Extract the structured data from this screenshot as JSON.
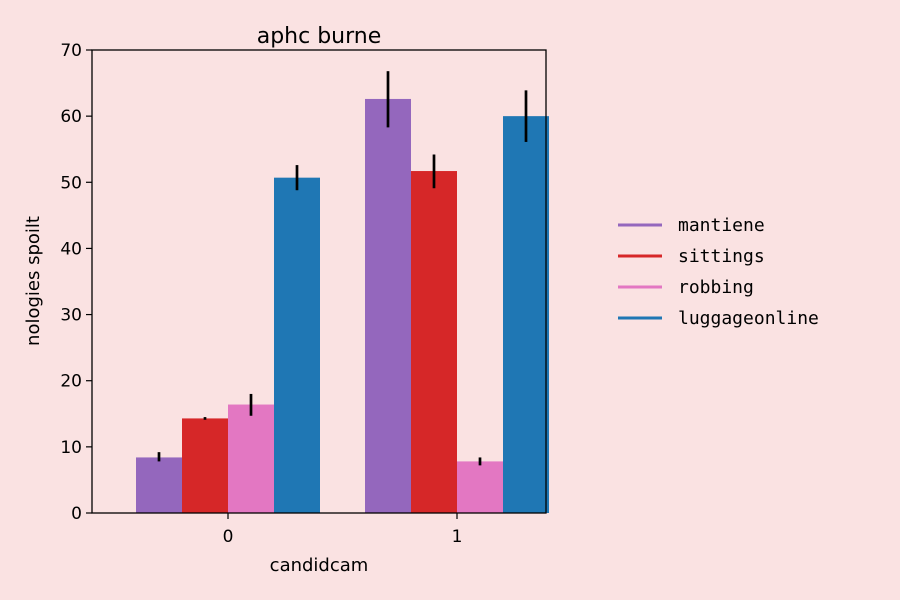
{
  "chart_data": {
    "type": "bar",
    "title": "aphc burne",
    "xlabel": "candidcam",
    "ylabel": "nologies spoilt",
    "categories": [
      "0",
      "1"
    ],
    "ylim": [
      0,
      70
    ],
    "yticks": [
      "0",
      "10",
      "20",
      "30",
      "40",
      "50",
      "60",
      "70"
    ],
    "series": [
      {
        "name": "mantiene",
        "color": "#9467bd",
        "values": [
          8.4,
          62.6
        ],
        "err_low": [
          7.8,
          58.3
        ],
        "err_high": [
          9.2,
          66.8
        ]
      },
      {
        "name": "sittings",
        "color": "#d62728",
        "values": [
          14.3,
          51.7
        ],
        "err_low": [
          14.1,
          49.1
        ],
        "err_high": [
          14.5,
          54.2
        ]
      },
      {
        "name": "robbing",
        "color": "#e377c2",
        "values": [
          16.4,
          7.8
        ],
        "err_low": [
          14.7,
          7.2
        ],
        "err_high": [
          18.0,
          8.4
        ]
      },
      {
        "name": "luggageonline",
        "color": "#1f77b4",
        "values": [
          50.7,
          60.0
        ],
        "err_low": [
          48.8,
          56.1
        ],
        "err_high": [
          52.6,
          63.9
        ]
      }
    ],
    "grid": false,
    "legend_position": "right"
  }
}
